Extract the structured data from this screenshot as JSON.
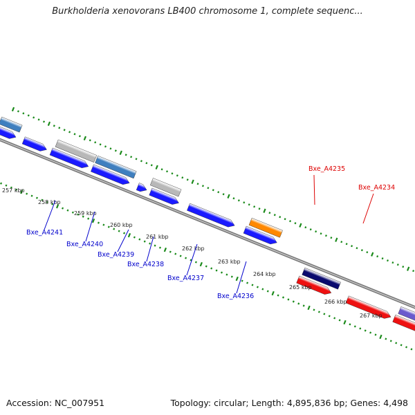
{
  "header": {
    "title": "Burkholderia xenovorans LB400 chromosome 1, complete sequenc..."
  },
  "footer": {
    "accession": "Accession: NC_007951",
    "summary": "Topology: circular; Length: 4,895,836 bp; Genes: 4,498"
  },
  "colors": {
    "blue": "#1a1aff",
    "steelblue": "#3f7fbf",
    "gray": "#b8b8b8",
    "navy": "#0a0a6e",
    "red": "#ee1111",
    "orange": "#ff8800",
    "slate": "#6a5acd",
    "backbone": "#7a7a7a",
    "ticks": "#1a8a1a",
    "label_blue": "#0000cc",
    "label_red": "#dd0000"
  },
  "kbp_labels": [
    "257 kbp",
    "258 kbp",
    "259 kbp",
    "260 kbp",
    "261 kbp",
    "262 kbp",
    "263 kbp",
    "264 kbp",
    "265 kbp",
    "266 kbp",
    "267 kbp"
  ],
  "gene_labels": [
    "Bxe_A4241",
    "Bxe_A4240",
    "Bxe_A4239",
    "Bxe_A4238",
    "Bxe_A4237",
    "Bxe_A4236",
    "Bxe_A4235",
    "Bxe_A4234"
  ]
}
